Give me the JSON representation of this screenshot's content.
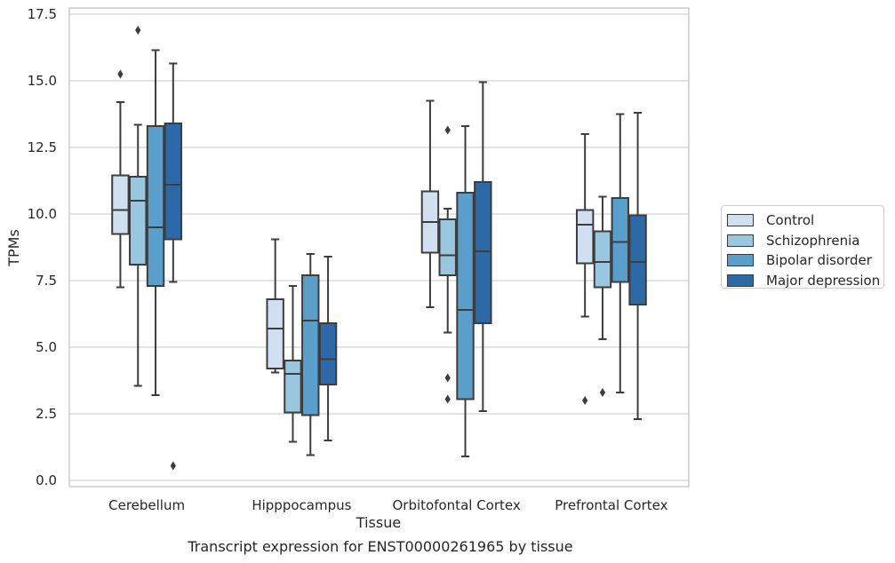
{
  "caption": "Transcript expression for ENST00000261965 by tissue",
  "chart_data": {
    "type": "box",
    "xlabel": "Tissue",
    "ylabel": "TPMs",
    "ylim": [
      -0.2,
      17.7
    ],
    "yticks": [
      0.0,
      2.5,
      5.0,
      7.5,
      10.0,
      12.5,
      15.0,
      17.5
    ],
    "ytick_labels": [
      "0.0",
      "2.5",
      "5.0",
      "7.5",
      "10.0",
      "12.5",
      "15.0",
      "17.5"
    ],
    "grid": "horizontal",
    "legend_position": "center-right, outside plot",
    "categories": [
      "Cerebellum",
      "Hipppocampus",
      "Orbitofontal Cortex",
      "Prefrontal Cortex"
    ],
    "series": [
      {
        "name": "Control",
        "color": "#d0e0f0",
        "boxes": [
          {
            "whislo": 7.25,
            "q1": 9.25,
            "med": 10.15,
            "q3": 11.45,
            "whishi": 14.2,
            "fliers": [
              15.25
            ]
          },
          {
            "whislo": 4.05,
            "q1": 4.2,
            "med": 5.7,
            "q3": 6.8,
            "whishi": 9.05,
            "fliers": []
          },
          {
            "whislo": 6.5,
            "q1": 8.55,
            "med": 9.7,
            "q3": 10.85,
            "whishi": 14.25,
            "fliers": []
          },
          {
            "whislo": 6.15,
            "q1": 8.15,
            "med": 9.6,
            "q3": 10.15,
            "whishi": 13.0,
            "fliers": [
              3.0
            ]
          }
        ]
      },
      {
        "name": "Schizophrenia",
        "color": "#9ac7e0",
        "boxes": [
          {
            "whislo": 3.55,
            "q1": 8.1,
            "med": 10.5,
            "q3": 11.4,
            "whishi": 13.35,
            "fliers": [
              16.9
            ]
          },
          {
            "whislo": 1.45,
            "q1": 2.55,
            "med": 4.0,
            "q3": 4.5,
            "whishi": 7.3,
            "fliers": []
          },
          {
            "whislo": 5.55,
            "q1": 7.7,
            "med": 8.45,
            "q3": 9.8,
            "whishi": 10.2,
            "fliers": [
              13.15,
              3.85,
              3.05
            ]
          },
          {
            "whislo": 5.3,
            "q1": 7.25,
            "med": 8.2,
            "q3": 9.35,
            "whishi": 10.65,
            "fliers": [
              3.3
            ]
          }
        ]
      },
      {
        "name": "Bipolar disorder",
        "color": "#5a9fcc",
        "boxes": [
          {
            "whislo": 3.2,
            "q1": 7.3,
            "med": 9.5,
            "q3": 13.3,
            "whishi": 16.15,
            "fliers": []
          },
          {
            "whislo": 0.95,
            "q1": 2.45,
            "med": 6.0,
            "q3": 7.7,
            "whishi": 8.5,
            "fliers": []
          },
          {
            "whislo": 0.9,
            "q1": 3.05,
            "med": 6.4,
            "q3": 10.8,
            "whishi": 13.3,
            "fliers": []
          },
          {
            "whislo": 3.3,
            "q1": 7.45,
            "med": 8.95,
            "q3": 10.6,
            "whishi": 13.75,
            "fliers": []
          }
        ]
      },
      {
        "name": "Major depression",
        "color": "#2b6aa6",
        "boxes": [
          {
            "whislo": 7.45,
            "q1": 9.05,
            "med": 11.1,
            "q3": 13.4,
            "whishi": 15.65,
            "fliers": [
              0.55
            ]
          },
          {
            "whislo": 1.5,
            "q1": 3.6,
            "med": 4.55,
            "q3": 5.9,
            "whishi": 8.4,
            "fliers": []
          },
          {
            "whislo": 2.6,
            "q1": 5.9,
            "med": 8.6,
            "q3": 11.2,
            "whishi": 14.95,
            "fliers": []
          },
          {
            "whislo": 2.3,
            "q1": 6.6,
            "med": 8.2,
            "q3": 9.95,
            "whishi": 13.8,
            "fliers": []
          }
        ]
      }
    ]
  }
}
